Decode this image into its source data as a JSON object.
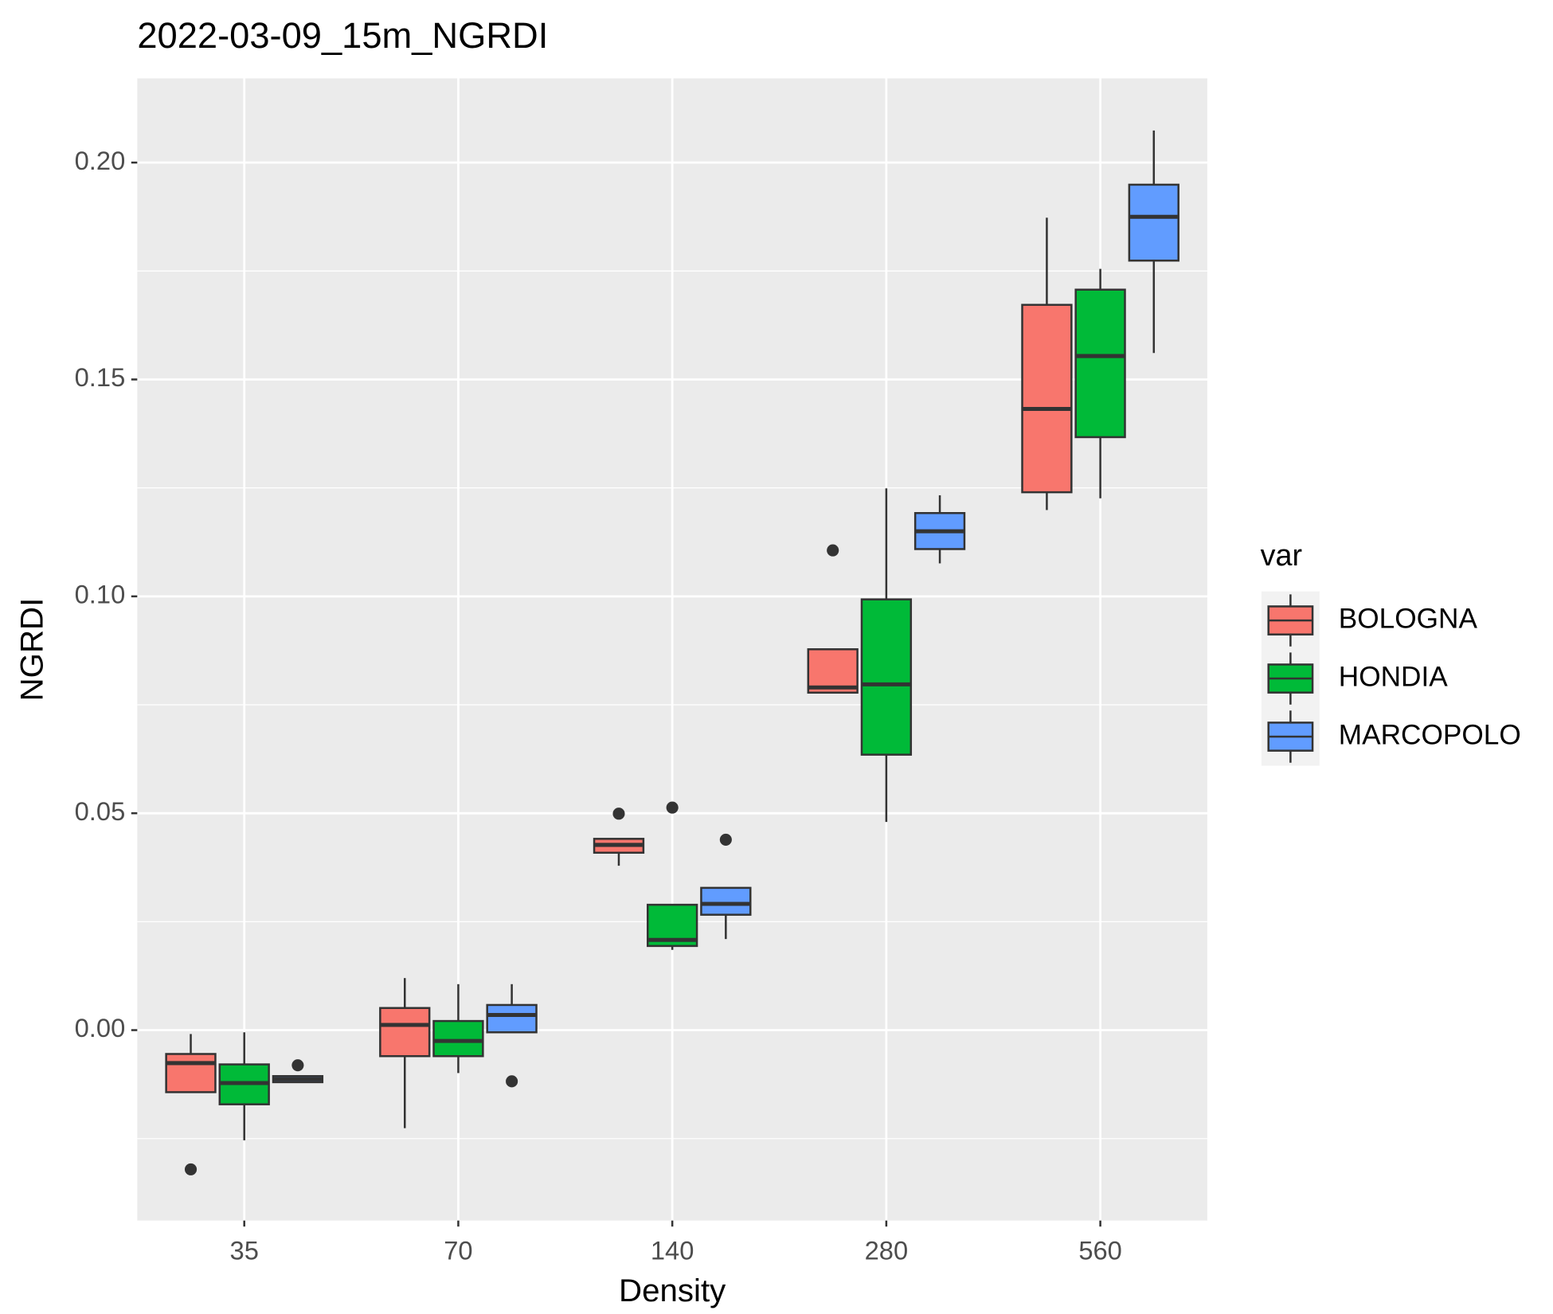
{
  "chart_data": {
    "type": "boxplot",
    "title": "2022-03-09_15m_NGRDI",
    "x_label": "Density",
    "y_label": "NGRDI",
    "legend_title": "var",
    "categories": [
      "35",
      "70",
      "140",
      "280",
      "560"
    ],
    "ylim": [
      -0.0439,
      0.2194
    ],
    "yticks": [
      {
        "value": 0,
        "label": "0.00"
      },
      {
        "value": 0.05,
        "label": "0.05"
      },
      {
        "value": 0.1,
        "label": "0.10"
      },
      {
        "value": 0.15,
        "label": "0.15"
      },
      {
        "value": 0.2,
        "label": "0.20"
      }
    ],
    "minor_yticks": [
      -0.025,
      0.025,
      0.075,
      0.125,
      0.175
    ],
    "grid": true,
    "series": [
      {
        "name": "BOLOGNA",
        "color": "#f8766d",
        "min": [
          -0.0143,
          -0.0226,
          0.0379,
          0.0778,
          0.1199
        ],
        "q1": [
          -0.0143,
          -0.006,
          0.0409,
          0.0778,
          0.124
        ],
        "median": [
          -0.0076,
          0.0012,
          0.0427,
          0.079,
          0.1432
        ],
        "q3": [
          -0.0055,
          0.0051,
          0.0441,
          0.0878,
          0.1672
        ],
        "max": [
          -0.0009,
          0.012,
          0.0441,
          0.0878,
          0.1873
        ],
        "outliers": [
          [
            -0.0321
          ],
          [],
          [
            0.0499
          ],
          [
            0.1106
          ],
          []
        ]
      },
      {
        "name": "HONDIA",
        "color": "#00ba38",
        "min": [
          -0.0254,
          -0.0099,
          0.0185,
          0.048,
          0.1226
        ],
        "q1": [
          -0.0171,
          -0.006,
          0.0194,
          0.0635,
          0.1367
        ],
        "median": [
          -0.0122,
          -0.0025,
          0.0208,
          0.0797,
          0.1554
        ],
        "q3": [
          -0.0079,
          0.0021,
          0.0289,
          0.0993,
          0.1707
        ],
        "max": [
          -0.0005,
          0.0106,
          0.0289,
          0.1249,
          0.1755
        ],
        "outliers": [
          [],
          [],
          [
            0.0513
          ],
          [],
          []
        ]
      },
      {
        "name": "MARCOPOLO",
        "color": "#619cff",
        "min": [
          -0.012,
          -0.0005,
          0.021,
          0.1076,
          0.1561
        ],
        "q1": [
          -0.012,
          -0.0005,
          0.0266,
          0.1109,
          0.1774
        ],
        "median": [
          -0.0113,
          0.0035,
          0.0291,
          0.115,
          0.1875
        ],
        "q3": [
          -0.0106,
          0.0058,
          0.0328,
          0.1192,
          0.1949
        ],
        "max": [
          -0.0106,
          0.0106,
          0.0328,
          0.1233,
          0.2074
        ],
        "outliers": [
          [
            -0.0081
          ],
          [
            -0.0118
          ],
          [
            0.0439
          ],
          [],
          []
        ]
      }
    ]
  }
}
